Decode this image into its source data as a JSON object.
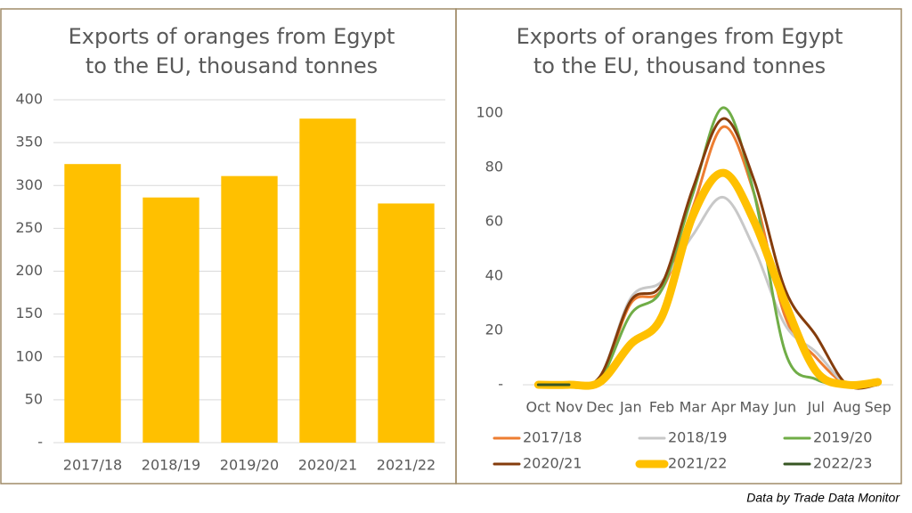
{
  "chart_data": [
    {
      "type": "bar",
      "title": [
        "Exports of oranges from Egypt",
        "to the EU, thousand tonnes"
      ],
      "categories": [
        "2017/18",
        "2018/19",
        "2019/20",
        "2020/21",
        "2021/22"
      ],
      "values": [
        325,
        286,
        311,
        378,
        279
      ],
      "color": "#FFC000",
      "ylim": [
        0,
        400
      ],
      "yticks": [
        {
          "value": 0,
          "label": "-"
        },
        50,
        100,
        150,
        200,
        250,
        300,
        350,
        400
      ],
      "grid": true
    },
    {
      "type": "line",
      "title": [
        "Exports of oranges from Egypt",
        "to the EU, thousand tonnes"
      ],
      "categories": [
        "Oct",
        "Nov",
        "Dec",
        "Jan",
        "Feb",
        "Mar",
        "Apr",
        "May",
        "Jun",
        "Jul",
        "Aug",
        "Sep"
      ],
      "series": [
        {
          "name": "2017/18",
          "color": "#ED7D31",
          "width": 3,
          "values": [
            0,
            0,
            2,
            30,
            35,
            65,
            95,
            70,
            25,
            10,
            0,
            0
          ]
        },
        {
          "name": "2018/19",
          "color": "#C8C8C8",
          "width": 3,
          "values": [
            0,
            0,
            3,
            32,
            38,
            55,
            69,
            50,
            22,
            12,
            0,
            0
          ]
        },
        {
          "name": "2019/20",
          "color": "#70AD47",
          "width": 3,
          "values": [
            0,
            0,
            2,
            26,
            35,
            70,
            102,
            70,
            12,
            2,
            0,
            0
          ]
        },
        {
          "name": "2020/21",
          "color": "#843C0C",
          "width": 3,
          "values": [
            0,
            0,
            3,
            31,
            37,
            72,
            98,
            75,
            35,
            18,
            0,
            0
          ]
        },
        {
          "name": "2021/22",
          "color": "#FFC000",
          "width": 9,
          "values": [
            0,
            0,
            1,
            15,
            25,
            62,
            78,
            60,
            30,
            5,
            0,
            1
          ]
        },
        {
          "name": "2022/23",
          "color": "#375623",
          "width": 3,
          "values": [
            0,
            0,
            null,
            null,
            null,
            null,
            null,
            null,
            null,
            null,
            null,
            null
          ]
        }
      ],
      "ylim": [
        0,
        100
      ],
      "yticks": [
        {
          "value": 0,
          "label": "-"
        },
        20,
        40,
        60,
        80,
        100
      ],
      "grid": false,
      "legend": "bottom"
    }
  ],
  "source": "Data by Trade Data Monitor"
}
